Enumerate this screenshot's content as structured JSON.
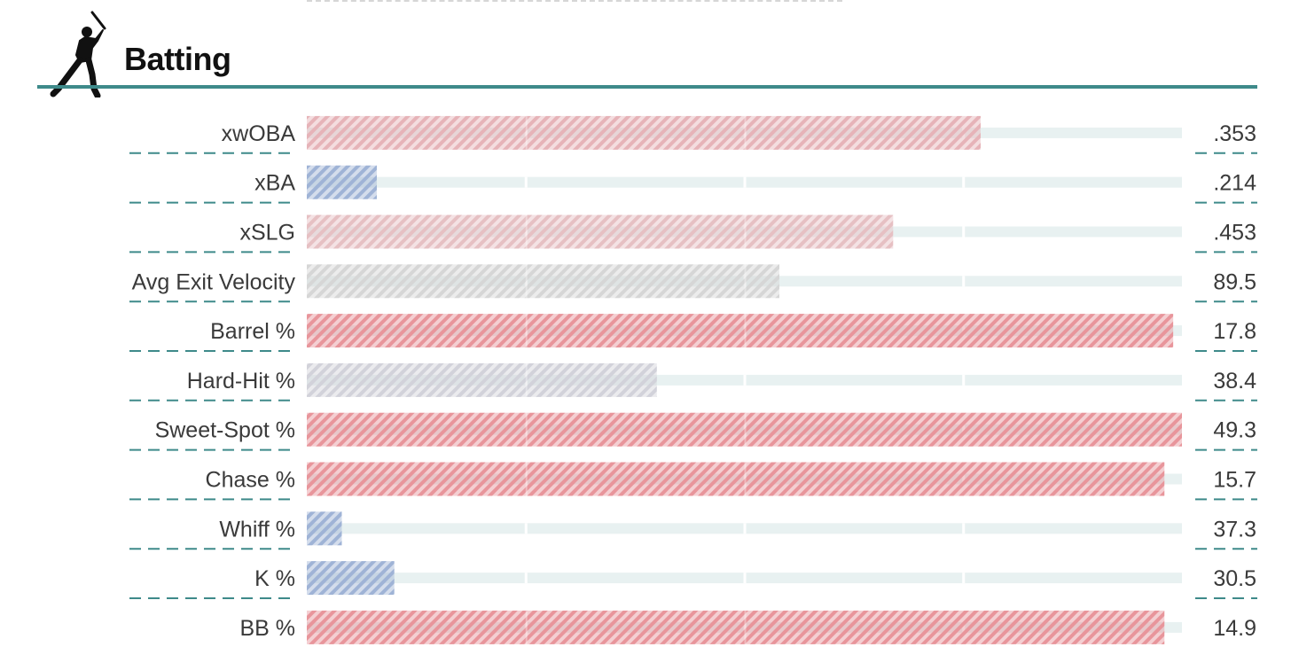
{
  "section": {
    "title": "Batting",
    "icon": "batter-silhouette-icon"
  },
  "colors": {
    "accent": "#3e8a8a",
    "track": "#e8f1f1",
    "above_avg": "#e8959b",
    "below_avg": "#9fb3d6",
    "average": "#d2d2d2"
  },
  "chart_data": {
    "type": "bar",
    "orientation": "horizontal",
    "title": "Batting",
    "scale": "percentile",
    "xlim": [
      0,
      100
    ],
    "grid": false,
    "legend": "none",
    "categories": [
      "xwOBA",
      "xBA",
      "xSLG",
      "Avg Exit Velocity",
      "Barrel %",
      "Hard-Hit %",
      "Sweet-Spot %",
      "Chase %",
      "Whiff %",
      "K %",
      "BB %"
    ],
    "display_values": [
      ".353",
      ".214",
      ".453",
      "89.5",
      "17.8",
      "38.4",
      "49.3",
      "15.7",
      "37.3",
      "30.5",
      "14.9"
    ],
    "percentiles": [
      77,
      8,
      67,
      54,
      99,
      40,
      100,
      98,
      4,
      10,
      98
    ],
    "bar_colors": [
      "#e6b3b8",
      "#9fb3d6",
      "#e6c0c3",
      "#d6d6d6",
      "#e8959b",
      "#d2d2da",
      "#e8959b",
      "#e8959b",
      "#9fb3d6",
      "#9fb3d6",
      "#e8959b"
    ]
  }
}
